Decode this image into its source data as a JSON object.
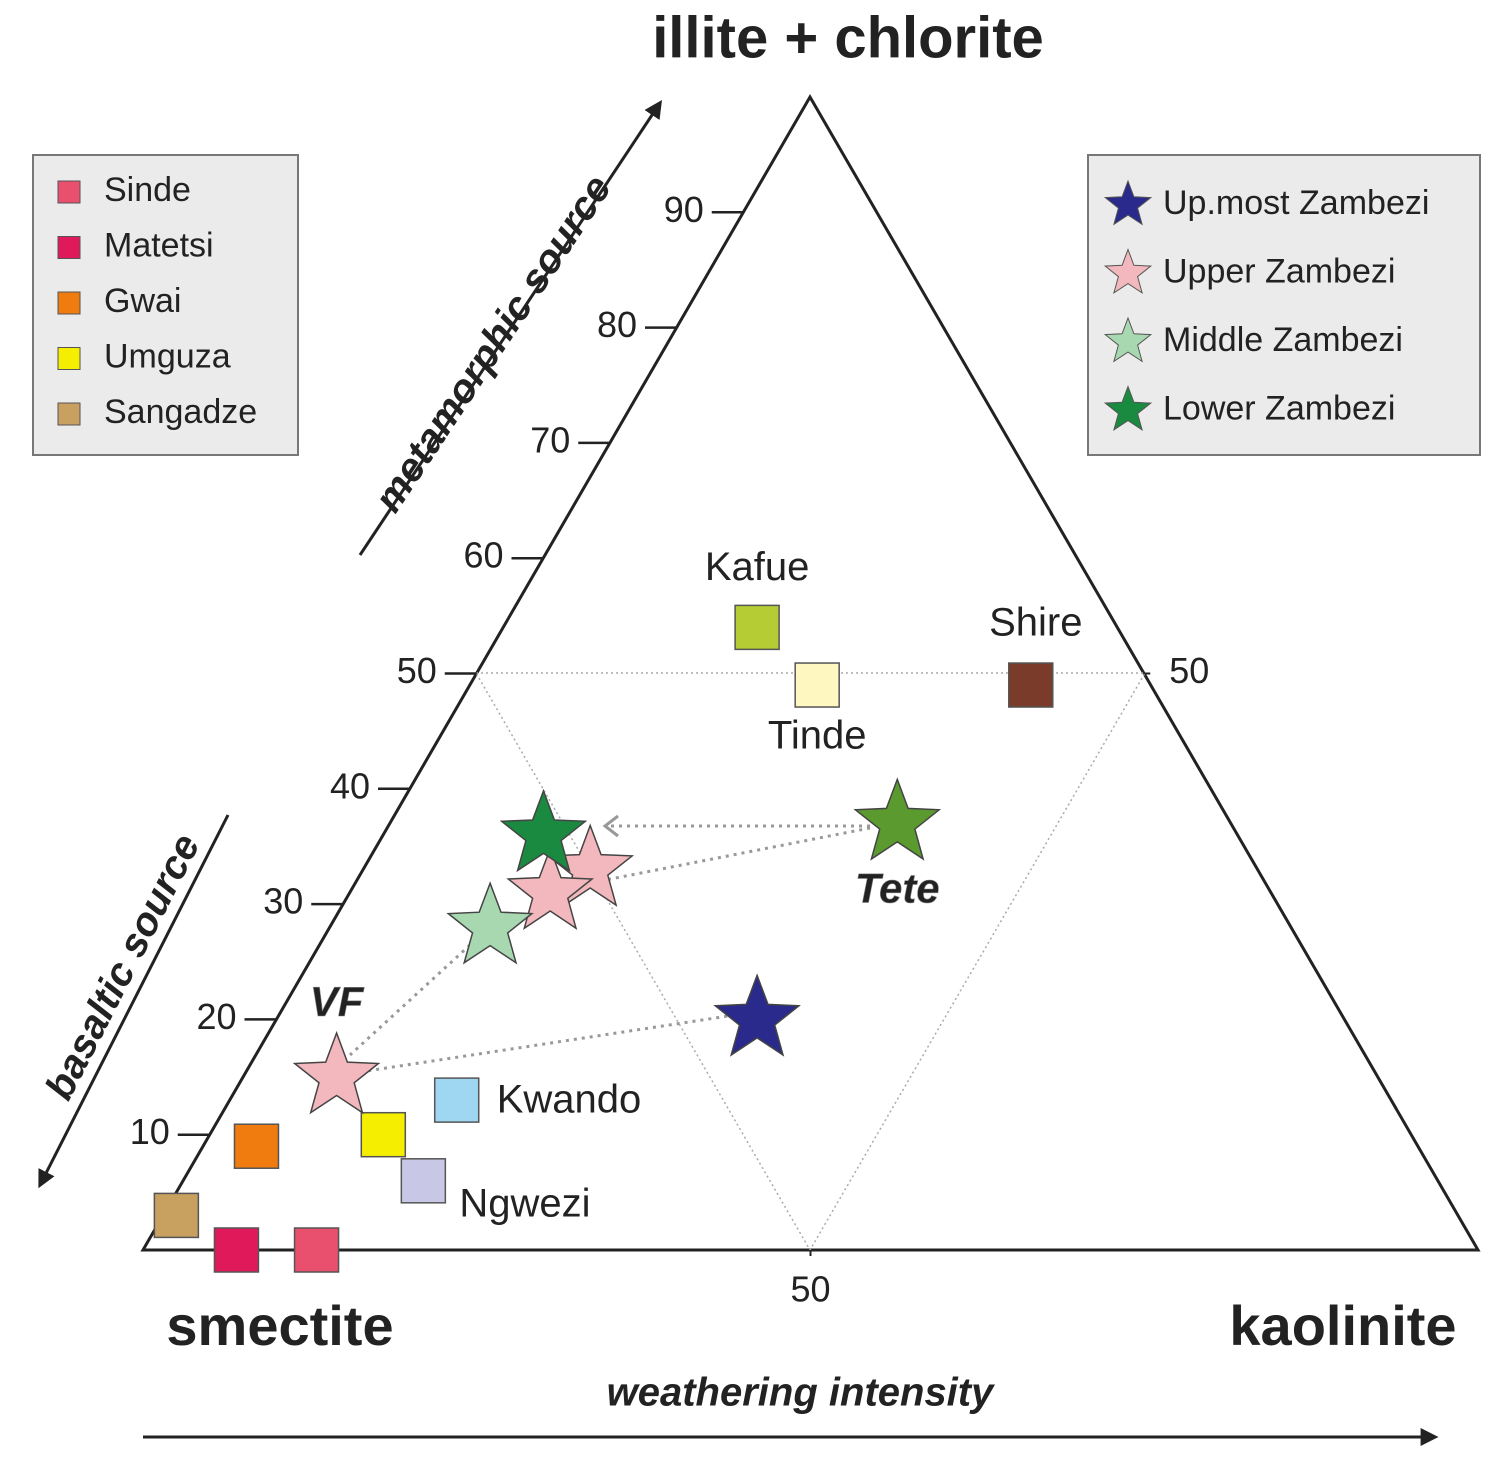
{
  "chart_data": {
    "type": "ternary",
    "title": "illite + chlorite",
    "left_corner": "smectite",
    "right_corner": "kaolinite",
    "left_arrow_up": "metamorphic source",
    "left_arrow_down": "basaltic source",
    "bottom_arrow": "weathering intensity",
    "left_ticks": [
      10,
      20,
      30,
      40,
      50,
      60,
      70,
      80,
      90
    ],
    "right_ticks": [
      50
    ],
    "bottom_ticks": [
      50
    ],
    "legend_left": [
      {
        "name": "Sinde",
        "color": "#e8506e"
      },
      {
        "name": "Matetsi",
        "color": "#e0195a"
      },
      {
        "name": "Gwai",
        "color": "#f07c10"
      },
      {
        "name": "Umguza",
        "color": "#f5ee00"
      },
      {
        "name": "Sangadze",
        "color": "#c8a060"
      }
    ],
    "legend_right": [
      {
        "name": "Up.most Zambezi",
        "color": "#2a2a8c"
      },
      {
        "name": "Upper Zambezi",
        "color": "#f2b8bd"
      },
      {
        "name": "Middle Zambezi",
        "color": "#a8d8b0"
      },
      {
        "name": "Lower Zambezi",
        "color": "#1a8a40"
      }
    ],
    "points": [
      {
        "marker": "square",
        "color": "#e8506e",
        "illite_chlorite": 0,
        "kaolinite": 13
      },
      {
        "marker": "square",
        "color": "#e0195a",
        "illite_chlorite": 0,
        "kaolinite": 7
      },
      {
        "marker": "square",
        "color": "#f07c10",
        "illite_chlorite": 9,
        "kaolinite": 4
      },
      {
        "marker": "square",
        "color": "#f5ee00",
        "illite_chlorite": 10,
        "kaolinite": 13
      },
      {
        "marker": "square",
        "color": "#c8a060",
        "illite_chlorite": 3,
        "kaolinite": 1
      },
      {
        "marker": "square",
        "color": "#b5cc35",
        "illite_chlorite": 54,
        "kaolinite": 19,
        "label": "Kafue"
      },
      {
        "marker": "square",
        "color": "#fef7c0",
        "illite_chlorite": 49,
        "kaolinite": 26,
        "label": "Tinde"
      },
      {
        "marker": "square",
        "color": "#7a3b2a",
        "illite_chlorite": 49,
        "kaolinite": 42,
        "label": "Shire"
      },
      {
        "marker": "square",
        "color": "#9fd6f2",
        "illite_chlorite": 13,
        "kaolinite": 17,
        "label": "Kwando"
      },
      {
        "marker": "square",
        "color": "#c8c8e6",
        "illite_chlorite": 6,
        "kaolinite": 18,
        "label": "Ngwezi"
      },
      {
        "marker": "star",
        "color": "#2a2a8c",
        "illite_chlorite": 20,
        "kaolinite": 36
      },
      {
        "marker": "star",
        "color": "#f2b8bd",
        "illite_chlorite": 33,
        "kaolinite": 17
      },
      {
        "marker": "star",
        "color": "#f2b8bd",
        "illite_chlorite": 31,
        "kaolinite": 15
      },
      {
        "marker": "star",
        "color": "#a8d8b0",
        "illite_chlorite": 28,
        "kaolinite": 12
      },
      {
        "marker": "star",
        "color": "#1a8a40",
        "illite_chlorite": 36,
        "kaolinite": 12
      },
      {
        "marker": "star",
        "color": "#f2b8bd",
        "illite_chlorite": 15,
        "kaolinite": 7,
        "label": "VF"
      },
      {
        "marker": "star",
        "color": "#5a9a2e",
        "illite_chlorite": 37,
        "kaolinite": 38,
        "label": "Tete"
      }
    ]
  }
}
